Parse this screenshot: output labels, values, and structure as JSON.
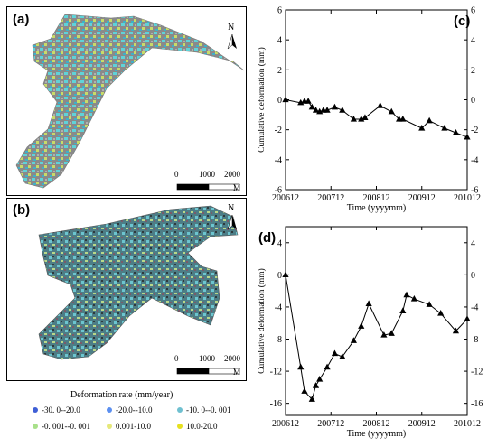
{
  "maps": {
    "a": {
      "label": "(a)",
      "north": "N",
      "scale_ticks": [
        "0",
        "1000",
        "2000"
      ],
      "scale_unit": "M"
    },
    "b": {
      "label": "(b)",
      "north": "N",
      "scale_ticks": [
        "0",
        "1000",
        "2000"
      ],
      "scale_unit": "M"
    }
  },
  "legend": {
    "title": "Deformation rate (mm/year)",
    "items": [
      {
        "label": "-30. 0--20.0",
        "color": "#3f5fd6"
      },
      {
        "label": "-20.0--10.0",
        "color": "#5b8ff0"
      },
      {
        "label": "-10. 0--0. 001",
        "color": "#6fc0d0"
      },
      {
        "label": "-0. 001--0. 001",
        "color": "#a8e08a"
      },
      {
        "label": "0.001-10.0",
        "color": "#e6e87a"
      },
      {
        "label": "10.0-20.0",
        "color": "#e6e020"
      }
    ]
  },
  "chart_data": [
    {
      "type": "line",
      "panel": "(c)",
      "xlabel": "Time (yyyymm)",
      "ylabel": "Cumulative deformation (mm)",
      "x_ticks": [
        "200612",
        "200712",
        "200812",
        "200912",
        "201012"
      ],
      "y_ticks": [
        "6",
        "4",
        "2",
        "0",
        "-2",
        "-4",
        "-6"
      ],
      "ylim": [
        -6,
        6
      ],
      "xlim": [
        "2006-12",
        "2010-12"
      ],
      "series": [
        {
          "marker": "triangle",
          "x": [
            "2006-12",
            "2007-04",
            "2007-05",
            "2007-06",
            "2007-07",
            "2007-08",
            "2007-09",
            "2007-10",
            "2007-11",
            "2008-01",
            "2008-03",
            "2008-06",
            "2008-08",
            "2008-09",
            "2009-01",
            "2009-04",
            "2009-06",
            "2009-07",
            "2009-12",
            "2010-02",
            "2010-06",
            "2010-09",
            "2010-12"
          ],
          "y": [
            0,
            -0.2,
            -0.1,
            -0.1,
            -0.5,
            -0.7,
            -0.8,
            -0.7,
            -0.7,
            -0.5,
            -0.7,
            -1.3,
            -1.3,
            -1.2,
            -0.4,
            -0.8,
            -1.3,
            -1.3,
            -1.9,
            -1.4,
            -1.9,
            -2.2,
            -2.5
          ]
        }
      ]
    },
    {
      "type": "line",
      "panel": "(d)",
      "xlabel": "Time (yyyymm)",
      "ylabel": "Cumulative deformation (mm)",
      "x_ticks": [
        "200612",
        "200712",
        "200812",
        "200912",
        "201012"
      ],
      "y_ticks": [
        "4",
        "0",
        "-4",
        "-8",
        "-12",
        "-16"
      ],
      "ylim": [
        -17.5,
        6
      ],
      "xlim": [
        "2006-12",
        "2010-12"
      ],
      "series": [
        {
          "marker": "triangle",
          "x": [
            "2006-12",
            "2007-04",
            "2007-05",
            "2007-07",
            "2007-08",
            "2007-09",
            "2007-11",
            "2008-01",
            "2008-03",
            "2008-06",
            "2008-08",
            "2008-10",
            "2009-02",
            "2009-04",
            "2009-07",
            "2009-08",
            "2009-10",
            "2010-02",
            "2010-05",
            "2010-09",
            "2010-12"
          ],
          "y": [
            0,
            -11.5,
            -14.5,
            -15.5,
            -13.8,
            -13,
            -11.5,
            -9.8,
            -10.2,
            -8.2,
            -6.4,
            -3.6,
            -7.5,
            -7.3,
            -4.5,
            -2.5,
            -3,
            -3.7,
            -4.8,
            -7,
            -5.5
          ]
        }
      ]
    }
  ]
}
